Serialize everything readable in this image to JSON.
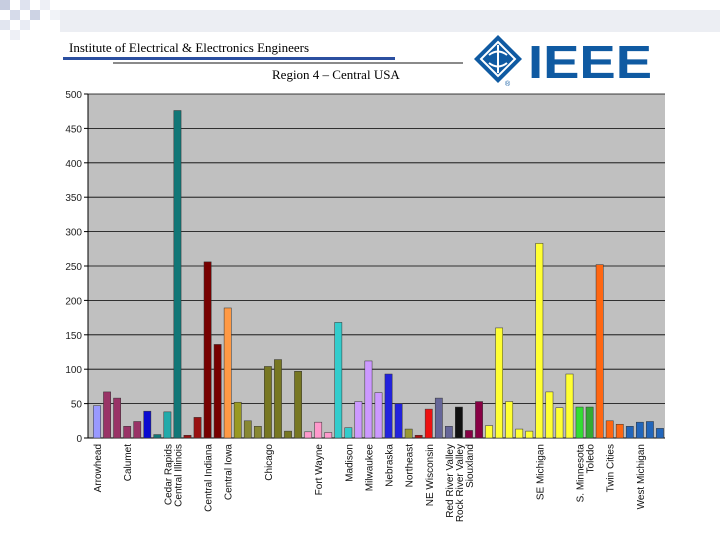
{
  "header": {
    "org_name": "Institute of Electrical & Electronics Engineers",
    "region": "Region 4 – Central USA",
    "logo_text": "IEEE",
    "logo_mark": "®",
    "logo_icon": "ieee-kite-icon"
  },
  "colors": {
    "header_rule_blue": "#2b4fa0",
    "logo_blue": "#0f5aa2",
    "plot_background": "#c0c0c0"
  },
  "chart_data": {
    "type": "bar",
    "title": "",
    "xlabel": "",
    "ylabel": "",
    "ylim": [
      0,
      500
    ],
    "yticks": [
      0,
      50,
      100,
      150,
      200,
      250,
      300,
      350,
      400,
      450,
      500
    ],
    "grid": true,
    "legend": "none",
    "values": [
      47,
      67,
      58,
      17,
      24,
      39,
      5,
      38,
      476,
      4,
      30,
      256,
      136,
      189,
      52,
      25,
      17,
      104,
      114,
      10,
      97,
      9,
      23,
      8,
      168,
      15,
      53,
      112,
      66,
      93,
      50,
      13,
      4,
      42,
      58,
      17,
      45,
      11,
      53,
      18,
      160,
      53,
      13,
      10,
      283,
      67,
      44,
      93,
      45,
      45,
      252,
      25,
      20,
      17,
      23,
      24,
      14
    ],
    "colors": [
      "#9999ff",
      "#993366",
      "#993366",
      "#993366",
      "#993366",
      "#0a0ad0",
      "#117777",
      "#22aaaa",
      "#117777",
      "#991111",
      "#991111",
      "#770000",
      "#770000",
      "#ff9944",
      "#999922",
      "#888833",
      "#888833",
      "#777722",
      "#777722",
      "#777722",
      "#777722",
      "#ff99cc",
      "#ff99cc",
      "#ff99cc",
      "#33cccc",
      "#33cccc",
      "#cc99ff",
      "#cc99ff",
      "#cc99ff",
      "#2222dd",
      "#2222dd",
      "#999933",
      "#aa1111",
      "#ee1111",
      "#666699",
      "#666699",
      "#111111",
      "#880044",
      "#880044",
      "#ffff33",
      "#ffff33",
      "#ffff33",
      "#ffff33",
      "#ffff33",
      "#ffff33",
      "#ffff33",
      "#ffff33",
      "#ffff33",
      "#33dd33",
      "#33aa33",
      "#ff6611",
      "#ff6611",
      "#ff6611",
      "#2266bb",
      "#2266bb",
      "#2266bb",
      "#2266bb"
    ],
    "category_labels": [
      {
        "bar": 0,
        "text": "Arrowhead"
      },
      {
        "bar": 3,
        "text": "Calumet"
      },
      {
        "bar": 7,
        "text": "Cedar Rapids"
      },
      {
        "bar": 8,
        "text": "Central Illinois"
      },
      {
        "bar": 11,
        "text": "Central Indiana"
      },
      {
        "bar": 13,
        "text": "Central Iowa"
      },
      {
        "bar": 17,
        "text": "Chicago"
      },
      {
        "bar": 22,
        "text": "Fort Wayne"
      },
      {
        "bar": 25,
        "text": "Madison"
      },
      {
        "bar": 27,
        "text": "Milwaukee"
      },
      {
        "bar": 29,
        "text": "Nebraska"
      },
      {
        "bar": 31,
        "text": "Northeast"
      },
      {
        "bar": 33,
        "text": "NE Wisconsin"
      },
      {
        "bar": 35,
        "text": "Red River Valley"
      },
      {
        "bar": 36,
        "text": "Rock River Valley"
      },
      {
        "bar": 37,
        "text": "Siouxland"
      },
      {
        "bar": 44,
        "text": "SE Michigan"
      },
      {
        "bar": 48,
        "text": "S. Minnesota"
      },
      {
        "bar": 49,
        "text": "Toledo"
      },
      {
        "bar": 51,
        "text": "Twin Cities"
      },
      {
        "bar": 54,
        "text": "West Michigan"
      }
    ]
  }
}
